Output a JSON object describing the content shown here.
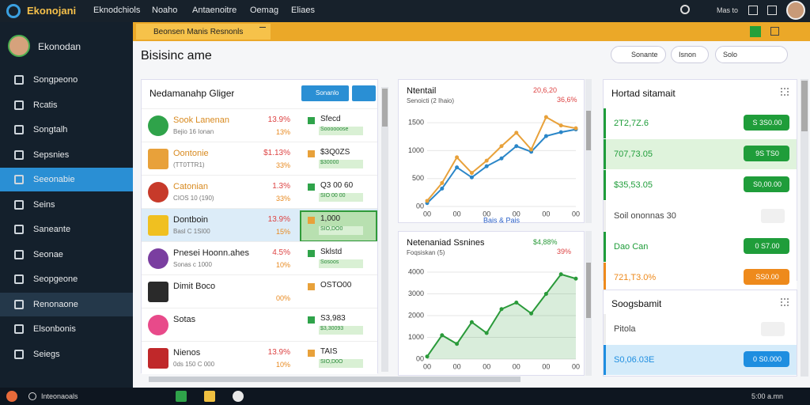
{
  "topbar": {
    "brand": "Ekonojani",
    "menu": [
      "Eknodchiols",
      "Noaho",
      "Antaenoitre",
      "Oemag",
      "Eliaes"
    ],
    "search": "Mas to"
  },
  "sidebar": {
    "user": "Ekonodan",
    "items": [
      "Songpeono",
      "Rcatis",
      "Songtalh",
      "Sepsnies",
      "Seeonabie",
      "Seins",
      "Saneante",
      "Seonae",
      "Seopgeone",
      "Renonaone",
      "Elsonbonis",
      "Seiegs"
    ],
    "active_item": 4,
    "selected_item": 9
  },
  "window": {
    "tab": "Beonsen Manis Resnonls",
    "title": "Bisisinc ame",
    "search": "Sonante",
    "buttons": [
      "Isnon",
      "Solo"
    ]
  },
  "list": {
    "title": "Nedamanahp Gliger",
    "button": "Sonanlo",
    "rows": [
      {
        "name": "Sook Lanenan",
        "sub": "Bejio 16 Ionan",
        "pct": "13.9%",
        "pct2": "13%",
        "tag": "Sfecd",
        "tagsub": "Soooooose"
      },
      {
        "name": "Oontonie",
        "sub": "(TT0TTR1)",
        "pct": "$1.13%",
        "pct2": "33%",
        "tag": "$3Q0ZS",
        "tagsub": "$30000"
      },
      {
        "name": "Catonian",
        "sub": "CIOS 10 (190)",
        "pct": "1.3%",
        "pct2": "33%",
        "tag": "Q3 00 60",
        "tagsub": "SIO 00 00"
      },
      {
        "name": "Dontboin",
        "sub": "Basl C 1SI00",
        "pct": "13.9%",
        "pct2": "15%",
        "tag": "1,000",
        "tagsub": "SIO,DO0"
      },
      {
        "name": "Pnesei Hoonn.ahes",
        "sub": "Sonas c 1000",
        "pct": "4.5%",
        "pct2": "10%",
        "tag": "Sklstd",
        "tagsub": "Sosoos"
      },
      {
        "name": "Dimit Boco",
        "pct2": "00%",
        "tag": "OSTO00"
      },
      {
        "name": "Sotas",
        "tag": "S3,983",
        "tagsub": "$3,30093"
      },
      {
        "name": "Nienos",
        "sub": "0ds 150 C 000",
        "pct": "13.9%",
        "pct2": "10%",
        "tag": "TAIS",
        "tagsub": "SIO,D0O"
      }
    ]
  },
  "charts": [
    {
      "type": "line",
      "title": "Ntentail",
      "subtitle": "Senoicti (2 Ihaio)",
      "legend": "Bais & Pais",
      "note": "20,6,20",
      "note2": "36,6%",
      "categories": [
        "00",
        null,
        "00",
        null,
        "00",
        null,
        "00",
        null,
        "00",
        null,
        "00"
      ],
      "series": [
        {
          "name": "Bais",
          "color": "#2a86c8",
          "values": [
            60,
            320,
            700,
            520,
            720,
            860,
            1080,
            980,
            1260,
            1330,
            1380
          ]
        },
        {
          "name": "Pais",
          "color": "#e8a13a",
          "values": [
            100,
            420,
            880,
            600,
            820,
            1080,
            1320,
            1020,
            1600,
            1450,
            1400
          ]
        }
      ],
      "ylim": [
        0,
        1700
      ],
      "yticks": [
        {
          "value": 0,
          "label": "00"
        },
        500,
        1000,
        1500
      ],
      "grid": true
    },
    {
      "type": "area",
      "title": "Netenaniad Ssnines",
      "subtitle": "Foqsiskan (5)",
      "note": "$4,88%",
      "note2": "39%",
      "categories": [
        "00",
        null,
        "00",
        null,
        "00",
        null,
        "00",
        null,
        "00",
        null,
        "00"
      ],
      "series": [
        {
          "name": "Ssnines",
          "color": "#2a9a3a",
          "values": [
            120,
            1100,
            700,
            1700,
            1200,
            2300,
            2600,
            2100,
            3000,
            3900,
            3700
          ]
        }
      ],
      "ylim": [
        0,
        4400
      ],
      "yticks": [
        {
          "value": 0,
          "label": "00"
        },
        1000,
        2000,
        3000,
        4000
      ],
      "grid": true
    }
  ],
  "right": {
    "title": "Hortad sitamait",
    "rows": [
      {
        "label": "2T2,7Z.6",
        "button": "S 3S0.00",
        "color": "#1f9d3a"
      },
      {
        "label": "707,73.05",
        "button": "9S TS0",
        "color": "#1f9d3a",
        "highlight": true
      },
      {
        "label": "$35,53.05",
        "button": "S0,00.00",
        "color": "#1f9d3a"
      },
      {
        "label": "Soil ononnas 30"
      },
      {
        "label": "Dao Can",
        "button": "0 S7.00",
        "color": "#1f9d3a"
      },
      {
        "label": "721,T3.0%",
        "button": "SS0.00",
        "color": "#ee8a1c"
      }
    ],
    "title2": "Soogsbamit",
    "rows2": [
      {
        "label": "Pitola"
      },
      {
        "label": "S0,06.03E",
        "button": "0 S0.000",
        "color": "#1e8ee0",
        "highlight": true
      }
    ]
  },
  "taskbar": {
    "search": "Inteonaoals",
    "time": "5:00 a.mn"
  }
}
